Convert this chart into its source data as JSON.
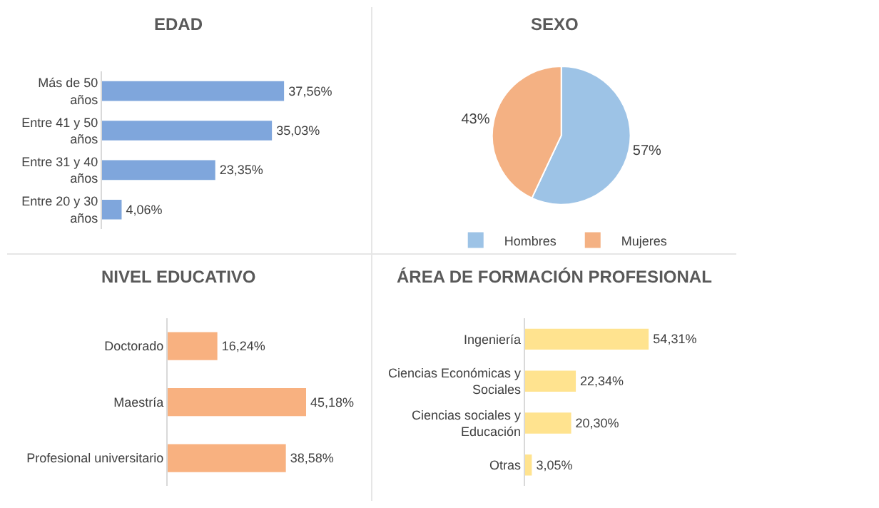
{
  "chart_data": [
    {
      "type": "bar",
      "orientation": "horizontal",
      "title": "EDAD",
      "categories": [
        "Más de 50 años",
        "Entre 41 y 50 años",
        "Entre 31 y 40 años",
        "Entre 20 y 30 años"
      ],
      "values": [
        37.56,
        35.03,
        23.35,
        4.06
      ],
      "color": "#7fa6dc",
      "value_labels": [
        "37,56%",
        "35,03%",
        "23,35%",
        "4,06%"
      ]
    },
    {
      "type": "pie",
      "title": "SEXO",
      "categories": [
        "Hombres",
        "Mujeres"
      ],
      "values": [
        57,
        43
      ],
      "colors": [
        "#9dc3e6",
        "#f4b183"
      ],
      "value_labels": [
        "57%",
        "43%"
      ],
      "legend": "bottom"
    },
    {
      "type": "bar",
      "orientation": "horizontal",
      "title": "NIVEL EDUCATIVO",
      "categories": [
        "Doctorado",
        "Maestría",
        "Profesional universitario"
      ],
      "values": [
        16.24,
        45.18,
        38.58
      ],
      "color": "#f8b180",
      "value_labels": [
        "16,24%",
        "45,18%",
        "38,58%"
      ]
    },
    {
      "type": "bar",
      "orientation": "horizontal",
      "title": "ÁREA DE FORMACIÓN PROFESIONAL",
      "categories": [
        "Ingeniería",
        "Ciencias Económicas y Sociales",
        "Ciencias sociales y Educación",
        "Otras"
      ],
      "values": [
        54.31,
        22.34,
        20.3,
        3.05
      ],
      "color": "#ffe38f",
      "value_labels": [
        "54,31%",
        "22,34%",
        "20,30%",
        "3,05%"
      ]
    }
  ]
}
